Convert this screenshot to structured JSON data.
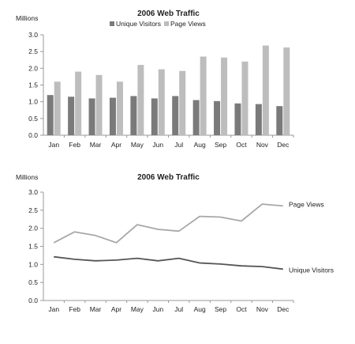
{
  "colors": {
    "unique_visitors": "#7a7a7a",
    "page_views": "#bdbdbd",
    "uv_line": "#555555",
    "pv_line": "#a8a8a8",
    "axis": "#999999"
  },
  "chart_data": [
    {
      "type": "bar",
      "title": "2006 Web Traffic",
      "ylabel": "Millions",
      "xlabel": "",
      "ylim": [
        0,
        3.0
      ],
      "yticks": [
        "0.0",
        "0.5",
        "1.0",
        "1.5",
        "2.0",
        "2.5",
        "3.0"
      ],
      "grid": false,
      "legend": "top",
      "categories": [
        "Jan",
        "Feb",
        "Mar",
        "Apr",
        "May",
        "Jun",
        "Jul",
        "Aug",
        "Sep",
        "Oct",
        "Nov",
        "Dec"
      ],
      "series": [
        {
          "name": "Unique Visitors",
          "values": [
            1.2,
            1.15,
            1.1,
            1.12,
            1.17,
            1.1,
            1.17,
            1.05,
            1.02,
            0.95,
            0.93,
            0.87
          ]
        },
        {
          "name": "Page Views",
          "values": [
            1.6,
            1.9,
            1.8,
            1.6,
            2.1,
            1.97,
            1.92,
            2.35,
            2.32,
            2.2,
            2.68,
            2.62
          ]
        }
      ]
    },
    {
      "type": "line",
      "title": "2006 Web Traffic",
      "ylabel": "Millions",
      "xlabel": "",
      "ylim": [
        0,
        3.0
      ],
      "yticks": [
        "0.0",
        "0.5",
        "1.0",
        "1.5",
        "2.0",
        "2.5",
        "3.0"
      ],
      "grid": false,
      "legend": "series labels at right end of lines",
      "categories": [
        "Jan",
        "Feb",
        "Mar",
        "Apr",
        "May",
        "Jun",
        "Jul",
        "Aug",
        "Sep",
        "Oct",
        "Nov",
        "Dec"
      ],
      "series": [
        {
          "name": "Page Views",
          "values": [
            1.6,
            1.9,
            1.8,
            1.6,
            2.1,
            1.97,
            1.92,
            2.33,
            2.31,
            2.2,
            2.67,
            2.62
          ]
        },
        {
          "name": "Unique Visitors",
          "values": [
            1.21,
            1.14,
            1.1,
            1.12,
            1.17,
            1.1,
            1.17,
            1.04,
            1.01,
            0.96,
            0.94,
            0.87
          ]
        }
      ]
    }
  ]
}
